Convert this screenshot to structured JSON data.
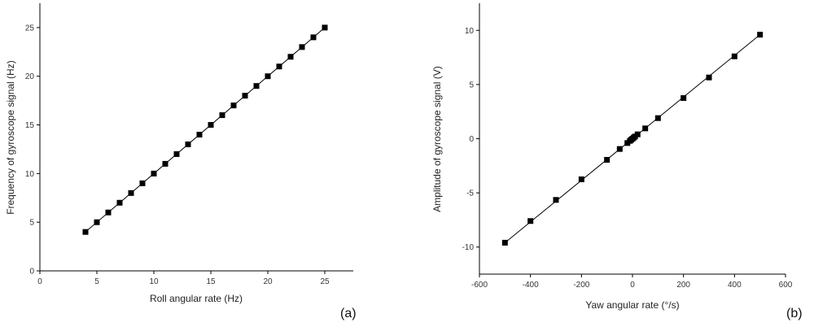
{
  "chart_data": [
    {
      "type": "scatter",
      "panel_label": "(a)",
      "xlabel": "Roll angular rate (Hz)",
      "ylabel": "Frequency of gyroscope signal (Hz)",
      "xlim": [
        0,
        27.5
      ],
      "ylim": [
        0,
        27.5
      ],
      "xticks": [
        0,
        5,
        10,
        15,
        20,
        25
      ],
      "yticks": [
        0,
        5,
        10,
        15,
        20,
        25
      ],
      "grid": false,
      "series": [
        {
          "marker": "square",
          "line": "linear-fit",
          "x": [
            4,
            5,
            6,
            7,
            8,
            9,
            10,
            11,
            12,
            13,
            14,
            15,
            16,
            17,
            18,
            19,
            20,
            21,
            22,
            23,
            24,
            25
          ],
          "y": [
            4,
            5,
            6,
            7,
            8,
            9,
            10,
            11,
            12,
            13,
            14,
            15,
            16,
            17,
            18,
            19,
            20,
            21,
            22,
            23,
            24,
            25
          ]
        }
      ]
    },
    {
      "type": "scatter",
      "panel_label": "(b)",
      "xlabel": "Yaw angular rate (°/s)",
      "ylabel": "Amplitude of gyroscope signal (V)",
      "xlim": [
        -600,
        600
      ],
      "ylim": [
        -12.5,
        12.5
      ],
      "xticks": [
        -600,
        -400,
        -200,
        0,
        200,
        400,
        600
      ],
      "yticks": [
        -10,
        -5,
        0,
        5,
        10
      ],
      "grid": false,
      "series": [
        {
          "marker": "square",
          "line": "linear-fit",
          "x": [
            -500,
            -400,
            -300,
            -200,
            -100,
            -50,
            -20,
            -10,
            -5,
            0,
            5,
            10,
            20,
            50,
            100,
            200,
            300,
            400,
            500
          ],
          "y": [
            -9.6,
            -7.6,
            -5.65,
            -3.75,
            -1.95,
            -0.95,
            -0.4,
            -0.2,
            -0.1,
            0.0,
            0.1,
            0.2,
            0.4,
            0.95,
            1.9,
            3.75,
            5.65,
            7.6,
            9.6
          ]
        }
      ]
    }
  ]
}
